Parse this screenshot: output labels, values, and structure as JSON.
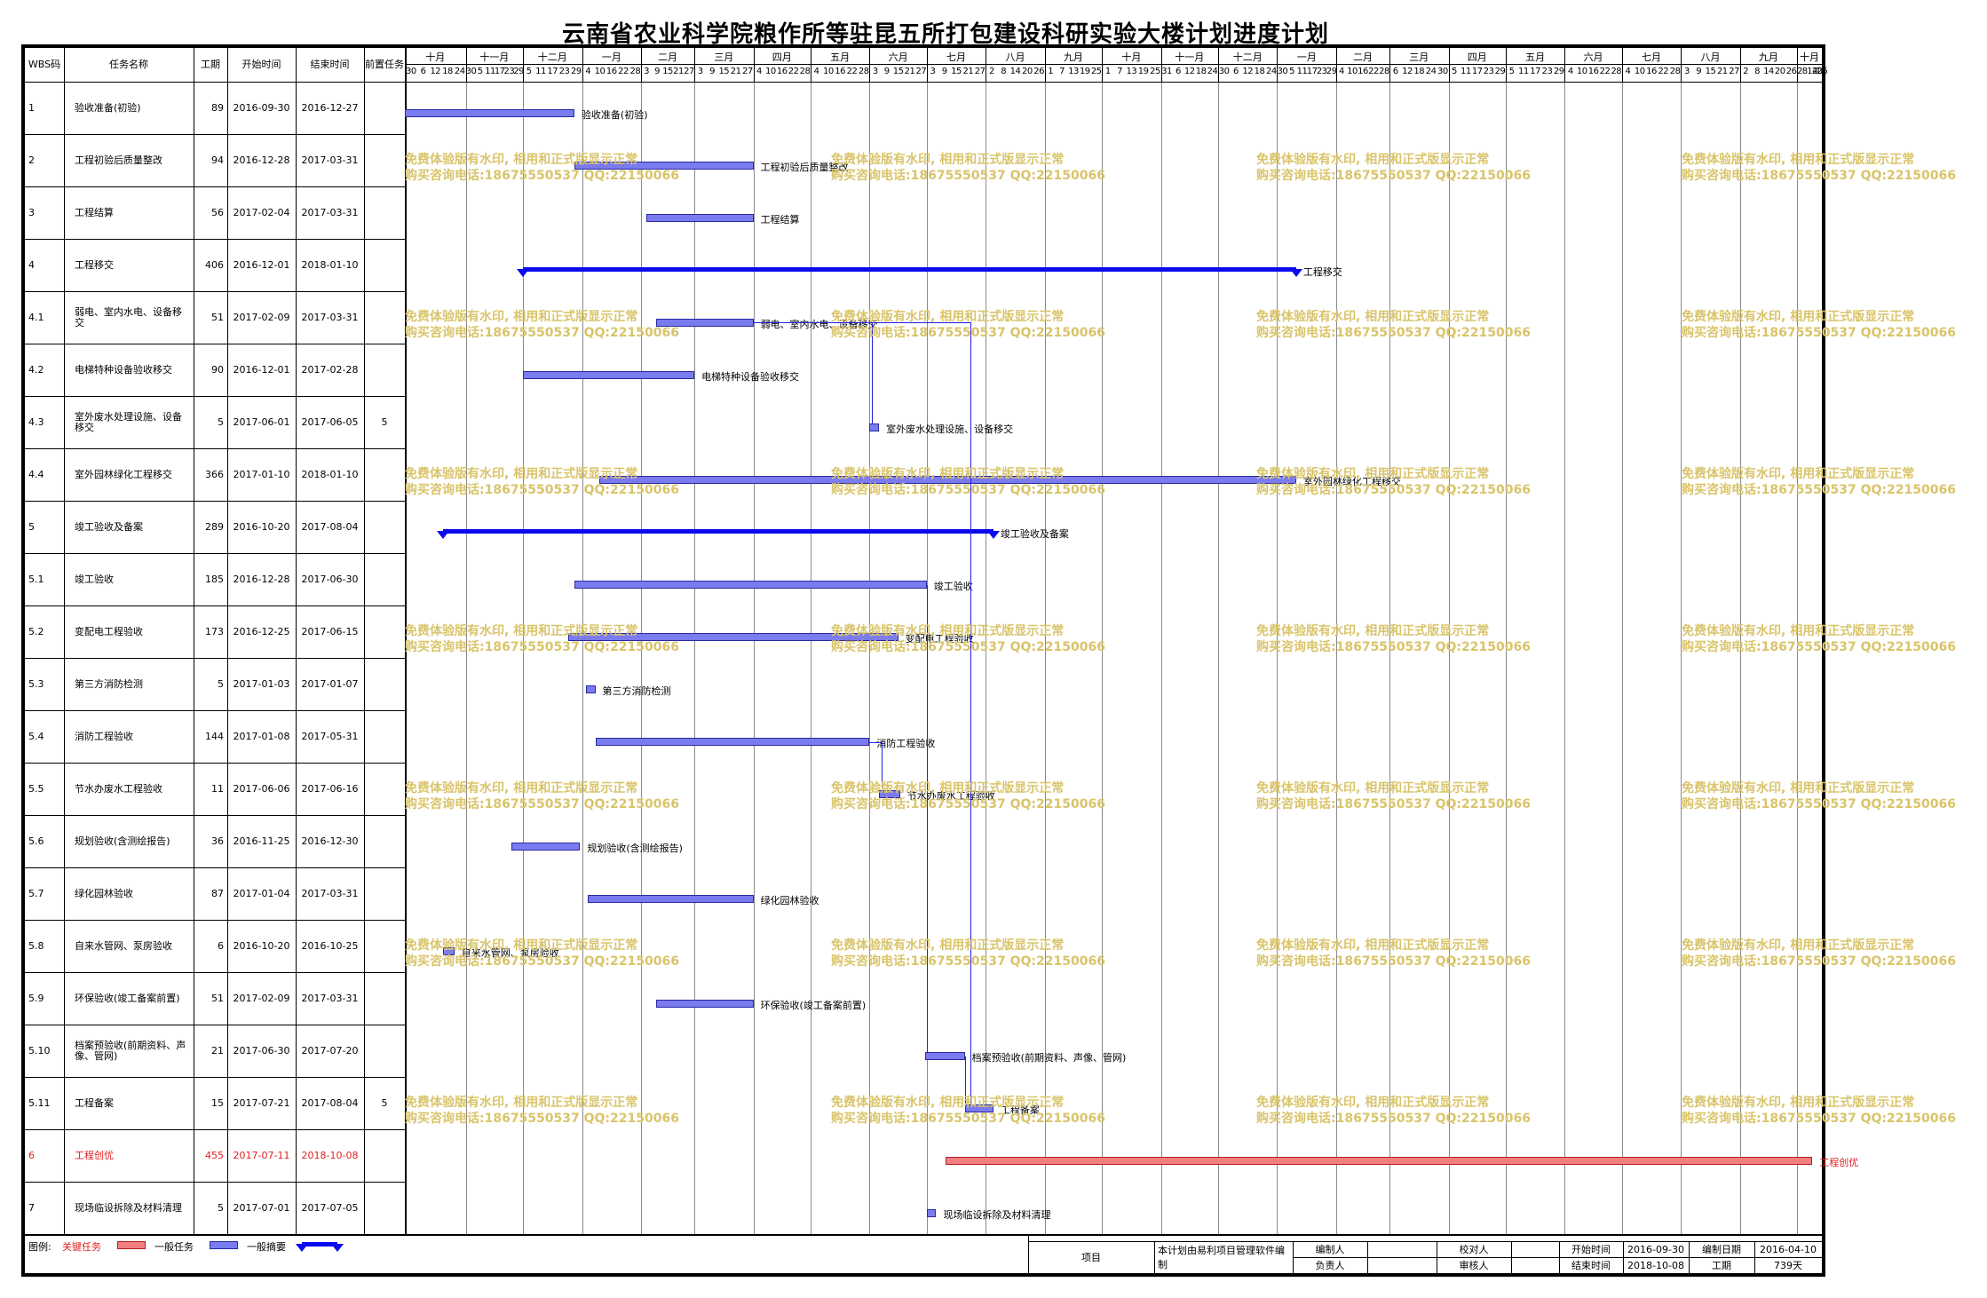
{
  "title": "云南省农业科学院粮作所等驻昆五所打包建设科研实验大楼计划进度计划",
  "columns": {
    "wbs": "WBS码",
    "name": "任务名称",
    "duration": "工期",
    "start": "开始时间",
    "end": "结束时间",
    "pred": "前置任务"
  },
  "timeline": {
    "start": "2016-09-30",
    "months": [
      "十月",
      "十一月",
      "十二月",
      "一月",
      "二月",
      "三月",
      "四月",
      "五月",
      "六月",
      "七月",
      "八月",
      "九月",
      "十月",
      "十一月",
      "十二月",
      "一月",
      "二月",
      "三月",
      "四月",
      "五月",
      "六月",
      "七月",
      "八月",
      "九月",
      "十月"
    ],
    "day_labels": [
      [
        "30",
        "6",
        "12",
        "18",
        "24"
      ],
      [
        "30",
        "5",
        "11",
        "17",
        "23",
        "29"
      ],
      [
        "5",
        "11",
        "17",
        "23",
        "29"
      ],
      [
        "4",
        "10",
        "16",
        "22",
        "28"
      ],
      [
        "3",
        "9",
        "15",
        "21",
        "27"
      ],
      [
        "3",
        "9",
        "15",
        "21",
        "27"
      ],
      [
        "4",
        "10",
        "16",
        "22",
        "28"
      ],
      [
        "4",
        "10",
        "16",
        "22",
        "28"
      ],
      [
        "3",
        "9",
        "15",
        "21",
        "27"
      ],
      [
        "3",
        "9",
        "15",
        "21",
        "27"
      ],
      [
        "2",
        "8",
        "14",
        "20",
        "26"
      ],
      [
        "1",
        "7",
        "13",
        "19",
        "25"
      ],
      [
        "1",
        "7",
        "13",
        "19",
        "25"
      ],
      [
        "31",
        "6",
        "12",
        "18",
        "24"
      ],
      [
        "30",
        "6",
        "12",
        "18",
        "24"
      ],
      [
        "30",
        "5",
        "11",
        "17",
        "23",
        "29"
      ],
      [
        "4",
        "10",
        "16",
        "22",
        "28"
      ],
      [
        "6",
        "12",
        "18",
        "24",
        "30"
      ],
      [
        "5",
        "11",
        "17",
        "23",
        "29"
      ],
      [
        "5",
        "11",
        "17",
        "23",
        "29"
      ],
      [
        "4",
        "10",
        "16",
        "22",
        "28"
      ],
      [
        "4",
        "10",
        "16",
        "22",
        "28"
      ],
      [
        "3",
        "9",
        "15",
        "21",
        "27"
      ],
      [
        "2",
        "8",
        "14",
        "20",
        "26"
      ],
      [
        "2",
        "8",
        "14",
        "20",
        "26"
      ]
    ],
    "tail": "1"
  },
  "tasks": [
    {
      "wbs": "1",
      "name": "验收准备(初验)",
      "duration": "89",
      "start": "2016-09-30",
      "end": "2016-12-27",
      "pred": "",
      "type": "normal",
      "label": "验收准备(初验)"
    },
    {
      "wbs": "2",
      "name": "工程初验后质量整改",
      "duration": "94",
      "start": "2016-12-28",
      "end": "2017-03-31",
      "pred": "",
      "type": "normal",
      "label": "工程初验后质量整改"
    },
    {
      "wbs": "3",
      "name": "工程结算",
      "duration": "56",
      "start": "2017-02-04",
      "end": "2017-03-31",
      "pred": "",
      "type": "normal",
      "label": "工程结算"
    },
    {
      "wbs": "4",
      "name": "工程移交",
      "duration": "406",
      "start": "2016-12-01",
      "end": "2018-01-10",
      "pred": "",
      "type": "summary",
      "label": "工程移交"
    },
    {
      "wbs": "4.1",
      "name": "弱电、室内水电、设备移交",
      "duration": "51",
      "start": "2017-02-09",
      "end": "2017-03-31",
      "pred": "",
      "type": "normal",
      "label": "弱电、室内水电、设备移交"
    },
    {
      "wbs": "4.2",
      "name": "电梯特种设备验收移交",
      "duration": "90",
      "start": "2016-12-01",
      "end": "2017-02-28",
      "pred": "",
      "type": "normal",
      "label": "电梯特种设备验收移交"
    },
    {
      "wbs": "4.3",
      "name": "室外废水处理设施、设备移交",
      "duration": "5",
      "start": "2017-06-01",
      "end": "2017-06-05",
      "pred": "5",
      "type": "normal",
      "label": "室外废水处理设施、设备移交"
    },
    {
      "wbs": "4.4",
      "name": "室外园林绿化工程移交",
      "duration": "366",
      "start": "2017-01-10",
      "end": "2018-01-10",
      "pred": "",
      "type": "normal",
      "label": "室外园林绿化工程移交"
    },
    {
      "wbs": "5",
      "name": "竣工验收及备案",
      "duration": "289",
      "start": "2016-10-20",
      "end": "2017-08-04",
      "pred": "",
      "type": "summary",
      "label": "竣工验收及备案"
    },
    {
      "wbs": "5.1",
      "name": "竣工验收",
      "duration": "185",
      "start": "2016-12-28",
      "end": "2017-06-30",
      "pred": "",
      "type": "normal",
      "label": "竣工验收"
    },
    {
      "wbs": "5.2",
      "name": "变配电工程验收",
      "duration": "173",
      "start": "2016-12-25",
      "end": "2017-06-15",
      "pred": "",
      "type": "normal",
      "label": "变配电工程验收"
    },
    {
      "wbs": "5.3",
      "name": "第三方消防检测",
      "duration": "5",
      "start": "2017-01-03",
      "end": "2017-01-07",
      "pred": "",
      "type": "normal",
      "label": "第三方消防检测"
    },
    {
      "wbs": "5.4",
      "name": "消防工程验收",
      "duration": "144",
      "start": "2017-01-08",
      "end": "2017-05-31",
      "pred": "",
      "type": "normal",
      "label": "消防工程验收"
    },
    {
      "wbs": "5.5",
      "name": "节水办废水工程验收",
      "duration": "11",
      "start": "2017-06-06",
      "end": "2017-06-16",
      "pred": "",
      "type": "normal",
      "label": "节水办废水工程验收"
    },
    {
      "wbs": "5.6",
      "name": "规划验收(含测绘报告)",
      "duration": "36",
      "start": "2016-11-25",
      "end": "2016-12-30",
      "pred": "",
      "type": "normal",
      "label": "规划验收(含测绘报告)"
    },
    {
      "wbs": "5.7",
      "name": "绿化园林验收",
      "duration": "87",
      "start": "2017-01-04",
      "end": "2017-03-31",
      "pred": "",
      "type": "normal",
      "label": "绿化园林验收"
    },
    {
      "wbs": "5.8",
      "name": "自来水管网、泵房验收",
      "duration": "6",
      "start": "2016-10-20",
      "end": "2016-10-25",
      "pred": "",
      "type": "normal",
      "label": "自来水管网、泵房验收"
    },
    {
      "wbs": "5.9",
      "name": "环保验收(竣工备案前置)",
      "duration": "51",
      "start": "2017-02-09",
      "end": "2017-03-31",
      "pred": "",
      "type": "normal",
      "label": "环保验收(竣工备案前置)"
    },
    {
      "wbs": "5.10",
      "name": "档案预验收(前期资料、声像、管网)",
      "duration": "21",
      "start": "2017-06-30",
      "end": "2017-07-20",
      "pred": "",
      "type": "normal",
      "label": "档案预验收(前期资料、声像、管网)"
    },
    {
      "wbs": "5.11",
      "name": "工程备案",
      "duration": "15",
      "start": "2017-07-21",
      "end": "2017-08-04",
      "pred": "5",
      "type": "normal",
      "label": "工程备案"
    },
    {
      "wbs": "6",
      "name": "工程创优",
      "duration": "455",
      "start": "2017-07-11",
      "end": "2018-10-08",
      "pred": "",
      "type": "critical",
      "label": "工程创优"
    },
    {
      "wbs": "7",
      "name": "现场临设拆除及材料清理",
      "duration": "5",
      "start": "2017-07-01",
      "end": "2017-07-05",
      "pred": "",
      "type": "normal",
      "label": "现场临设拆除及材料清理"
    }
  ],
  "watermark": {
    "line1": "免费体验版有水印, 相用和正式版显示正常",
    "line2": "购买咨询电话:18675550537 QQ:22150066"
  },
  "legend": {
    "label": "图例:",
    "critical": "关键任务",
    "normal": "一般任务",
    "summary": "一般摘要"
  },
  "footer": {
    "project_label": "项目",
    "software_note": "本计划由易利项目管理软件编制",
    "editor": "编制人",
    "proofreader": "校对人",
    "owner": "负责人",
    "reviewer": "审核人",
    "start_label": "开始时间",
    "start_value": "2016-09-30",
    "end_label": "结束时间",
    "end_value": "2018-10-08",
    "made_label": "编制日期",
    "made_value": "2016-04-10",
    "duration_label": "工期",
    "duration_value": "739天"
  },
  "colors": {
    "normal_bar": "#7b7bf0",
    "critical_bar": "#f47f7f",
    "summary_bar": "#0a0af0",
    "critical_text": "#e02020",
    "watermark": "#d9c46a"
  }
}
